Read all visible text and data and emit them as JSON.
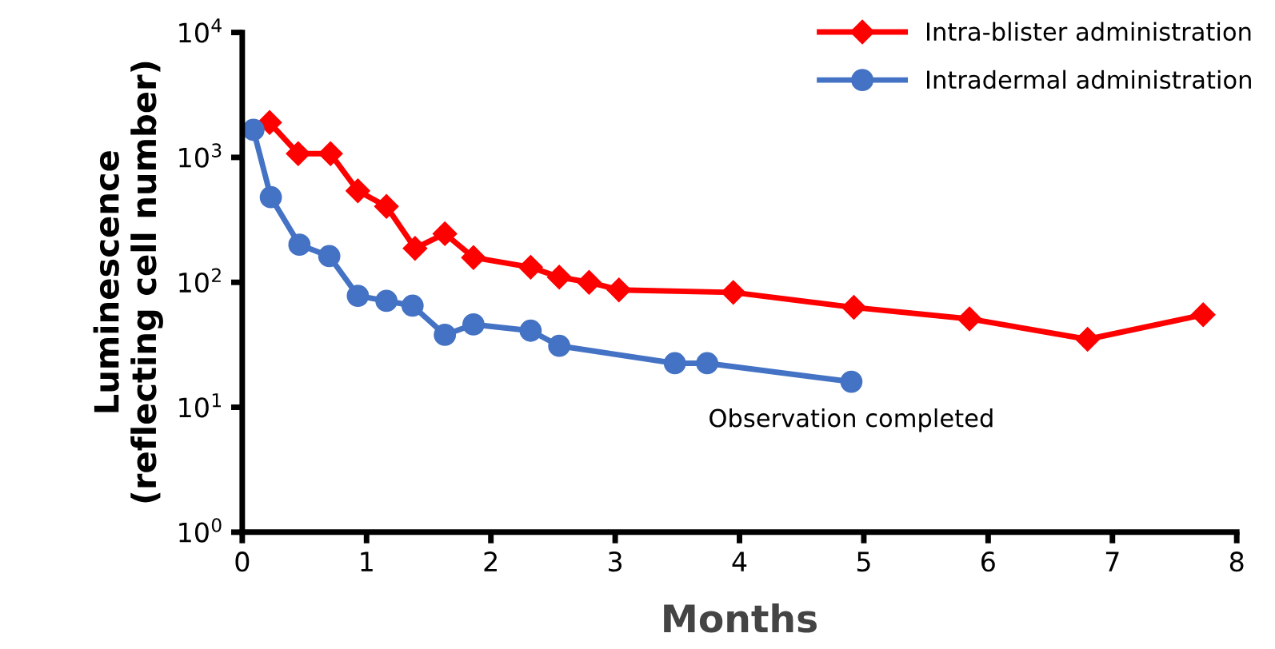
{
  "chart_data": {
    "type": "line",
    "xlabel": "Months",
    "ylabel": "Luminescence\n(reflecting cell number)",
    "log": "y",
    "xlim": [
      0,
      8
    ],
    "xticks": [
      0,
      1,
      2,
      3,
      4,
      5,
      6,
      7,
      8
    ],
    "ylim": [
      1,
      10000
    ],
    "yticks": [
      {
        "value": 1,
        "label": "10$^{0}$"
      },
      {
        "value": 10,
        "label": "10$^{1}$"
      },
      {
        "value": 100,
        "label": "10$^{2}$"
      },
      {
        "value": 1000,
        "label": "10$^{3}$"
      },
      {
        "value": 10000,
        "label": "10$^{4}$"
      }
    ],
    "grid": false,
    "legend": "top right",
    "series": [
      {
        "name": "Intra-blister administration",
        "color": "#ff0000",
        "marker": "diamond",
        "x": [
          0.22,
          0.45,
          0.71,
          0.93,
          1.16,
          1.39,
          1.63,
          1.86,
          2.32,
          2.55,
          2.79,
          3.03,
          3.95,
          4.92,
          5.85,
          6.8,
          7.73
        ],
        "values": [
          1900,
          1070,
          1070,
          540,
          405,
          187,
          245,
          158,
          132,
          110,
          100,
          87,
          83,
          63,
          51,
          35,
          55
        ]
      },
      {
        "name": "Intradermal administration",
        "color": "#4472c4",
        "marker": "circle",
        "x": [
          0.09,
          0.23,
          0.46,
          0.7,
          0.93,
          1.16,
          1.37,
          1.63,
          1.86,
          2.32,
          2.55,
          3.48,
          3.74,
          4.9
        ],
        "values": [
          1660,
          480,
          200,
          162,
          78,
          71,
          65,
          38,
          46,
          41,
          31,
          22.5,
          22.5,
          16
        ]
      }
    ],
    "annotations": [
      {
        "text": "Observation completed",
        "x": 4.9,
        "y": 16
      }
    ]
  }
}
